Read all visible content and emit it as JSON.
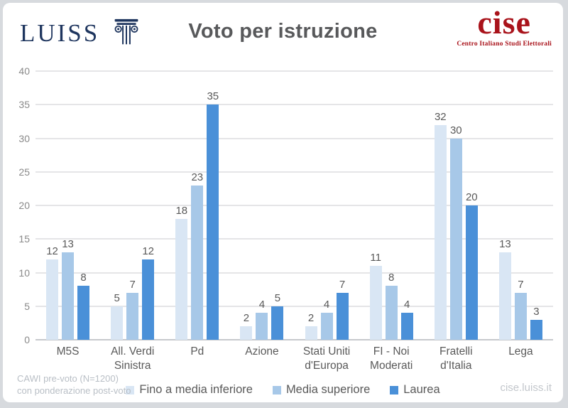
{
  "header": {
    "luiss_wordmark": "LUISS",
    "cise_wordmark": "cise",
    "cise_tagline": "Centro Italiano Studi Elettorali"
  },
  "chart_data": {
    "type": "bar",
    "title": "Voto per istruzione",
    "categories": [
      "M5S",
      "All. Verdi\nSinistra",
      "Pd",
      "Azione",
      "Stati Uniti\nd'Europa",
      "FI - Noi\nModerati",
      "Fratelli\nd'Italia",
      "Lega"
    ],
    "series": [
      {
        "name": "Fino a media inferiore",
        "color": "#d9e6f4",
        "values": [
          12,
          5,
          18,
          2,
          2,
          11,
          32,
          13
        ]
      },
      {
        "name": "Media superiore",
        "color": "#a7c8e8",
        "values": [
          13,
          7,
          23,
          4,
          4,
          8,
          30,
          7
        ]
      },
      {
        "name": "Laurea",
        "color": "#4a90d8",
        "values": [
          8,
          12,
          35,
          5,
          7,
          4,
          20,
          3
        ]
      }
    ],
    "xlabel": "",
    "ylabel": "",
    "ylim": [
      0,
      40
    ],
    "ytick_step": 5,
    "grid": true,
    "value_labels": true,
    "legend_position": "bottom"
  },
  "footer": {
    "source_line1": "CAWI pre-voto (N=1200)",
    "source_line2": "con ponderazione post-voto",
    "site": "cise.luiss.it"
  },
  "colors": {
    "luiss_navy": "#1e355e",
    "cise_red": "#a9131b",
    "title_gray": "#58595b",
    "axis_gray": "#8a8a8a",
    "muted_gray": "#b9bfc6"
  }
}
